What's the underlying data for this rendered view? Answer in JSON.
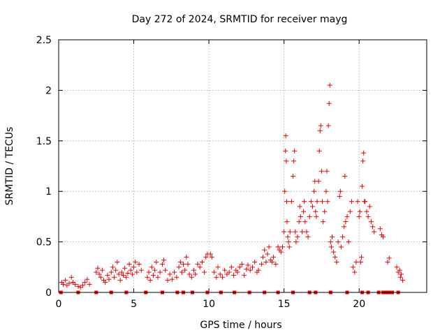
{
  "chart_data": {
    "type": "scatter",
    "title": "Day 272 of 2024, SRMTID for receiver mayg",
    "xlabel": "GPS time / hours",
    "ylabel": "SRMTID / TECUs",
    "xlim": [
      0,
      24.5
    ],
    "ylim": [
      0,
      2.5
    ],
    "x_ticks": [
      0,
      5,
      10,
      15,
      20
    ],
    "x_tick_labels": [
      "0",
      "5",
      "10",
      "15",
      "20"
    ],
    "y_ticks": [
      0,
      0.5,
      1,
      1.5,
      2,
      2.5
    ],
    "y_tick_labels": [
      "0",
      "0.5",
      "1",
      "1.5",
      "2",
      "2.5"
    ],
    "grid": true,
    "marker": "plus",
    "marker_color": "#ee0000",
    "series": [
      {
        "name": "SRMTID",
        "points": [
          [
            0.2,
            0.1
          ],
          [
            0.3,
            0.08
          ],
          [
            0.45,
            0.12
          ],
          [
            0.55,
            0.07
          ],
          [
            0.7,
            0.09
          ],
          [
            0.85,
            0.15
          ],
          [
            0.95,
            0.1
          ],
          [
            1.1,
            0.08
          ],
          [
            1.3,
            0.06
          ],
          [
            1.45,
            0.05
          ],
          [
            1.6,
            0.07
          ],
          [
            1.75,
            0.1
          ],
          [
            1.9,
            0.13
          ],
          [
            2.05,
            0.08
          ],
          [
            2.5,
            0.2
          ],
          [
            2.6,
            0.24
          ],
          [
            2.7,
            0.18
          ],
          [
            2.8,
            0.15
          ],
          [
            2.9,
            0.22
          ],
          [
            3.0,
            0.12
          ],
          [
            3.1,
            0.1
          ],
          [
            3.25,
            0.17
          ],
          [
            3.35,
            0.13
          ],
          [
            3.5,
            0.2
          ],
          [
            3.6,
            0.25
          ],
          [
            3.7,
            0.15
          ],
          [
            3.8,
            0.22
          ],
          [
            3.9,
            0.3
          ],
          [
            4.0,
            0.18
          ],
          [
            4.1,
            0.12
          ],
          [
            4.2,
            0.2
          ],
          [
            4.3,
            0.17
          ],
          [
            4.4,
            0.24
          ],
          [
            4.5,
            0.15
          ],
          [
            4.6,
            0.19
          ],
          [
            4.7,
            0.28
          ],
          [
            4.8,
            0.22
          ],
          [
            4.9,
            0.18
          ],
          [
            5.0,
            0.25
          ],
          [
            5.1,
            0.3
          ],
          [
            5.2,
            0.2
          ],
          [
            5.35,
            0.28
          ],
          [
            5.5,
            0.22
          ],
          [
            5.9,
            0.15
          ],
          [
            6.0,
            0.2
          ],
          [
            6.1,
            0.12
          ],
          [
            6.2,
            0.25
          ],
          [
            6.3,
            0.17
          ],
          [
            6.4,
            0.22
          ],
          [
            6.5,
            0.3
          ],
          [
            6.6,
            0.15
          ],
          [
            6.75,
            0.2
          ],
          [
            6.9,
            0.28
          ],
          [
            7.0,
            0.32
          ],
          [
            7.1,
            0.22
          ],
          [
            7.25,
            0.12
          ],
          [
            7.4,
            0.18
          ],
          [
            7.55,
            0.13
          ],
          [
            7.7,
            0.2
          ],
          [
            7.85,
            0.15
          ],
          [
            8.0,
            0.25
          ],
          [
            8.1,
            0.3
          ],
          [
            8.2,
            0.2
          ],
          [
            8.3,
            0.28
          ],
          [
            8.4,
            0.22
          ],
          [
            8.5,
            0.35
          ],
          [
            8.6,
            0.28
          ],
          [
            8.7,
            0.18
          ],
          [
            8.85,
            0.15
          ],
          [
            9.0,
            0.22
          ],
          [
            9.1,
            0.18
          ],
          [
            9.25,
            0.28
          ],
          [
            9.4,
            0.25
          ],
          [
            9.55,
            0.3
          ],
          [
            9.7,
            0.2
          ],
          [
            9.8,
            0.35
          ],
          [
            9.9,
            0.38
          ],
          [
            10.1,
            0.38
          ],
          [
            10.2,
            0.35
          ],
          [
            10.35,
            0.2
          ],
          [
            10.5,
            0.15
          ],
          [
            10.6,
            0.25
          ],
          [
            10.75,
            0.18
          ],
          [
            10.9,
            0.15
          ],
          [
            11.05,
            0.22
          ],
          [
            11.2,
            0.18
          ],
          [
            11.35,
            0.2
          ],
          [
            11.5,
            0.25
          ],
          [
            11.65,
            0.17
          ],
          [
            11.8,
            0.22
          ],
          [
            11.9,
            0.2
          ],
          [
            12.05,
            0.25
          ],
          [
            12.2,
            0.28
          ],
          [
            12.35,
            0.17
          ],
          [
            12.5,
            0.23
          ],
          [
            12.6,
            0.27
          ],
          [
            12.75,
            0.22
          ],
          [
            12.9,
            0.25
          ],
          [
            13.05,
            0.3
          ],
          [
            13.2,
            0.2
          ],
          [
            13.3,
            0.22
          ],
          [
            13.5,
            0.28
          ],
          [
            13.6,
            0.35
          ],
          [
            13.7,
            0.42
          ],
          [
            13.8,
            0.3
          ],
          [
            13.9,
            0.38
          ],
          [
            14.0,
            0.45
          ],
          [
            14.1,
            0.32
          ],
          [
            14.2,
            0.3
          ],
          [
            14.3,
            0.35
          ],
          [
            14.45,
            0.28
          ],
          [
            14.6,
            0.45
          ],
          [
            14.7,
            0.42
          ],
          [
            14.8,
            0.4
          ],
          [
            14.9,
            0.45
          ],
          [
            15.0,
            0.6
          ],
          [
            15.05,
            1.0
          ],
          [
            15.1,
            1.4
          ],
          [
            15.12,
            1.55
          ],
          [
            15.15,
            1.3
          ],
          [
            15.18,
            0.9
          ],
          [
            15.2,
            0.7
          ],
          [
            15.25,
            0.55
          ],
          [
            15.3,
            0.5
          ],
          [
            15.35,
            0.45
          ],
          [
            15.4,
            0.6
          ],
          [
            15.5,
            0.9
          ],
          [
            15.6,
            1.15
          ],
          [
            15.65,
            1.3
          ],
          [
            15.7,
            1.4
          ],
          [
            15.75,
            0.6
          ],
          [
            15.8,
            0.5
          ],
          [
            15.9,
            0.55
          ],
          [
            16.0,
            0.7
          ],
          [
            16.05,
            0.85
          ],
          [
            16.1,
            0.75
          ],
          [
            16.2,
            0.6
          ],
          [
            16.3,
            0.8
          ],
          [
            16.35,
            0.9
          ],
          [
            16.4,
            0.7
          ],
          [
            16.5,
            0.6
          ],
          [
            16.6,
            0.55
          ],
          [
            16.7,
            0.75
          ],
          [
            16.8,
            0.9
          ],
          [
            16.9,
            0.85
          ],
          [
            17.0,
            1.0
          ],
          [
            17.05,
            1.1
          ],
          [
            17.1,
            0.8
          ],
          [
            17.15,
            0.75
          ],
          [
            17.2,
            0.9
          ],
          [
            17.3,
            1.1
          ],
          [
            17.35,
            1.4
          ],
          [
            17.4,
            1.6
          ],
          [
            17.45,
            1.65
          ],
          [
            17.5,
            1.2
          ],
          [
            17.55,
            0.9
          ],
          [
            17.6,
            0.7
          ],
          [
            17.7,
            0.8
          ],
          [
            17.8,
            1.0
          ],
          [
            17.85,
            1.2
          ],
          [
            17.9,
            0.9
          ],
          [
            17.95,
            1.65
          ],
          [
            18.0,
            1.87
          ],
          [
            18.05,
            2.05
          ],
          [
            18.1,
            0.5
          ],
          [
            18.15,
            0.45
          ],
          [
            18.2,
            0.55
          ],
          [
            18.3,
            0.4
          ],
          [
            18.4,
            0.35
          ],
          [
            18.5,
            0.3
          ],
          [
            18.6,
            0.5
          ],
          [
            18.7,
            0.95
          ],
          [
            18.75,
            1.0
          ],
          [
            18.8,
            0.45
          ],
          [
            18.9,
            0.55
          ],
          [
            19.0,
            0.65
          ],
          [
            19.05,
            1.15
          ],
          [
            19.1,
            0.7
          ],
          [
            19.2,
            0.75
          ],
          [
            19.3,
            0.5
          ],
          [
            19.4,
            0.8
          ],
          [
            19.5,
            0.9
          ],
          [
            19.6,
            0.25
          ],
          [
            19.7,
            0.2
          ],
          [
            19.8,
            0.3
          ],
          [
            19.9,
            0.9
          ],
          [
            20.0,
            0.75
          ],
          [
            20.05,
            0.8
          ],
          [
            20.1,
            0.3
          ],
          [
            20.15,
            0.35
          ],
          [
            20.2,
            1.05
          ],
          [
            20.25,
            1.3
          ],
          [
            20.3,
            1.38
          ],
          [
            20.35,
            0.9
          ],
          [
            20.4,
            0.9
          ],
          [
            20.5,
            0.8
          ],
          [
            20.6,
            0.75
          ],
          [
            20.7,
            0.85
          ],
          [
            20.8,
            0.7
          ],
          [
            20.9,
            0.65
          ],
          [
            21.0,
            0.6
          ],
          [
            21.4,
            0.63
          ],
          [
            21.5,
            0.57
          ],
          [
            21.6,
            0.55
          ],
          [
            21.9,
            0.3
          ],
          [
            22.0,
            0.34
          ],
          [
            22.5,
            0.25
          ],
          [
            22.6,
            0.2
          ],
          [
            22.7,
            0.22
          ],
          [
            22.75,
            0.15
          ],
          [
            22.8,
            0.18
          ],
          [
            22.9,
            0.12
          ]
        ]
      }
    ],
    "zero_markers_x": [
      0.15,
      1.3,
      2.5,
      3.5,
      4.5,
      5.8,
      6.9,
      7.9,
      8.3,
      8.9,
      9.9,
      10.8,
      11.7,
      12.7,
      13.7,
      14.6,
      15.6,
      16.7,
      17.1,
      18.1,
      19.2,
      20.2,
      20.6,
      21.3,
      21.6,
      21.8,
      22.0,
      22.2,
      22.6
    ]
  }
}
